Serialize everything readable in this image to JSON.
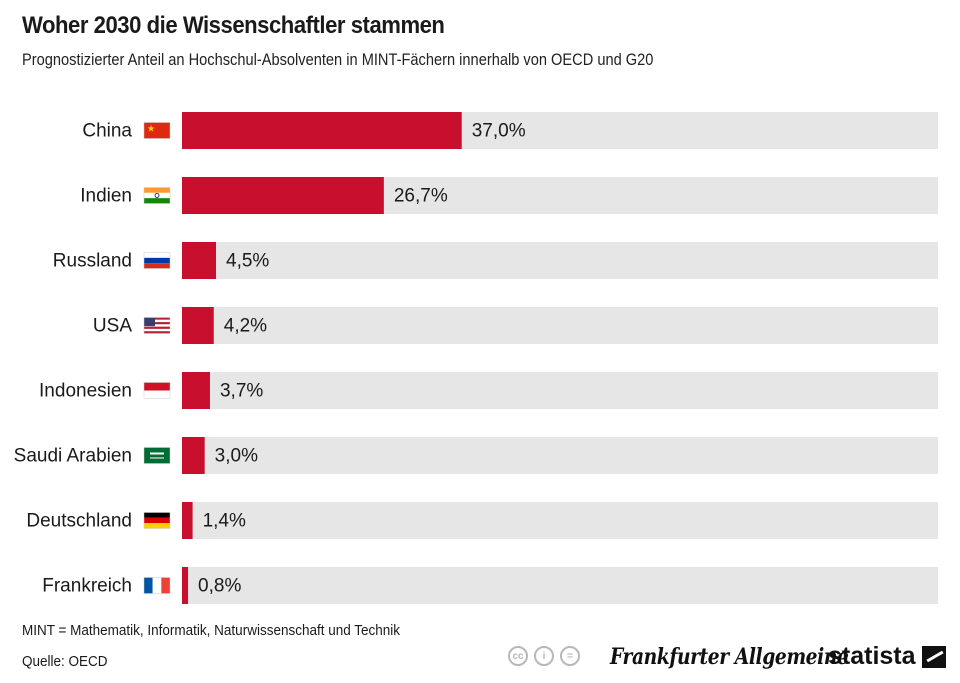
{
  "header": {
    "title": "Woher 2030 die Wissenschaftler stammen",
    "subtitle": "Prognostizierter Anteil an Hochschul-Absolventen in MINT-Fächern innerhalb von OECD und G20"
  },
  "chart_data": {
    "type": "bar",
    "orientation": "horizontal",
    "title": "Woher 2030 die Wissenschaftler stammen",
    "subtitle": "Prognostizierter Anteil an Hochschul-Absolventen in MINT-Fächern innerhalb von OECD und G20",
    "categories": [
      "China",
      "Indien",
      "Russland",
      "USA",
      "Indonesien",
      "Saudi Arabien",
      "Deutschland",
      "Frankreich"
    ],
    "values": [
      37.0,
      26.7,
      4.5,
      4.2,
      3.7,
      3.0,
      1.4,
      0.8
    ],
    "value_labels": [
      "37,0%",
      "26,7%",
      "4,5%",
      "4,2%",
      "3,7%",
      "3,0%",
      "1,4%",
      "0,8%"
    ],
    "flags": [
      "china-flag-icon",
      "india-flag-icon",
      "russia-flag-icon",
      "usa-flag-icon",
      "indonesia-flag-icon",
      "saudi-arabia-flag-icon",
      "germany-flag-icon",
      "france-flag-icon"
    ],
    "xlim": [
      0,
      100
    ],
    "unit": "%",
    "bar_color": "#c8102e",
    "track_color": "#e6e6e6",
    "xlabel": "",
    "ylabel": "",
    "grid": false,
    "legend": "none"
  },
  "footer": {
    "footnote": "MINT = Mathematik, Informatik, Naturwissenschaft und Technik",
    "source": "Quelle: OECD",
    "cc_icons": [
      "cc",
      "i",
      "="
    ],
    "publisher": "Frankfurter Allgemeine",
    "brand": "statista"
  }
}
